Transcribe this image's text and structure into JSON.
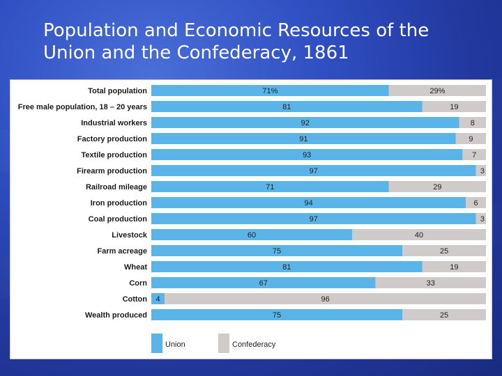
{
  "slide": {
    "title_line1": "Population and Economic Resources of the",
    "title_line2": "Union and the Confederacy, 1861"
  },
  "colors": {
    "union": "#5ab4e8",
    "confederacy": "#cfcbcb",
    "background": "#2a45b5"
  },
  "chart_data": {
    "type": "bar",
    "orientation": "horizontal",
    "stacked": true,
    "percent_stacked": true,
    "categories": [
      "Total population",
      "Free male population, 18 – 20 years",
      "Industrial workers",
      "Factory production",
      "Textile production",
      "Firearm production",
      "Railroad mileage",
      "Iron production",
      "Coal production",
      "Livestock",
      "Farm acreage",
      "Wheat",
      "Corn",
      "Cotton",
      "Wealth produced"
    ],
    "series": [
      {
        "name": "Union",
        "values": [
          71,
          81,
          92,
          91,
          93,
          97,
          71,
          94,
          97,
          60,
          75,
          81,
          67,
          4,
          75
        ],
        "labels": [
          "71%",
          "81",
          "92",
          "91",
          "93",
          "97",
          "71",
          "94",
          "97",
          "60",
          "75",
          "81",
          "67",
          "4",
          "75"
        ]
      },
      {
        "name": "Confederacy",
        "values": [
          29,
          19,
          8,
          9,
          7,
          3,
          29,
          6,
          3,
          40,
          25,
          19,
          33,
          96,
          25
        ],
        "labels": [
          "29%",
          "19",
          "8",
          "9",
          "7",
          "3",
          "29",
          "6",
          "3",
          "40",
          "25",
          "19",
          "33",
          "96",
          "25"
        ]
      }
    ],
    "xlim": [
      0,
      100
    ],
    "legend": {
      "position": "bottom-left",
      "items": [
        "Union",
        "Confederacy"
      ]
    },
    "grid": false
  }
}
